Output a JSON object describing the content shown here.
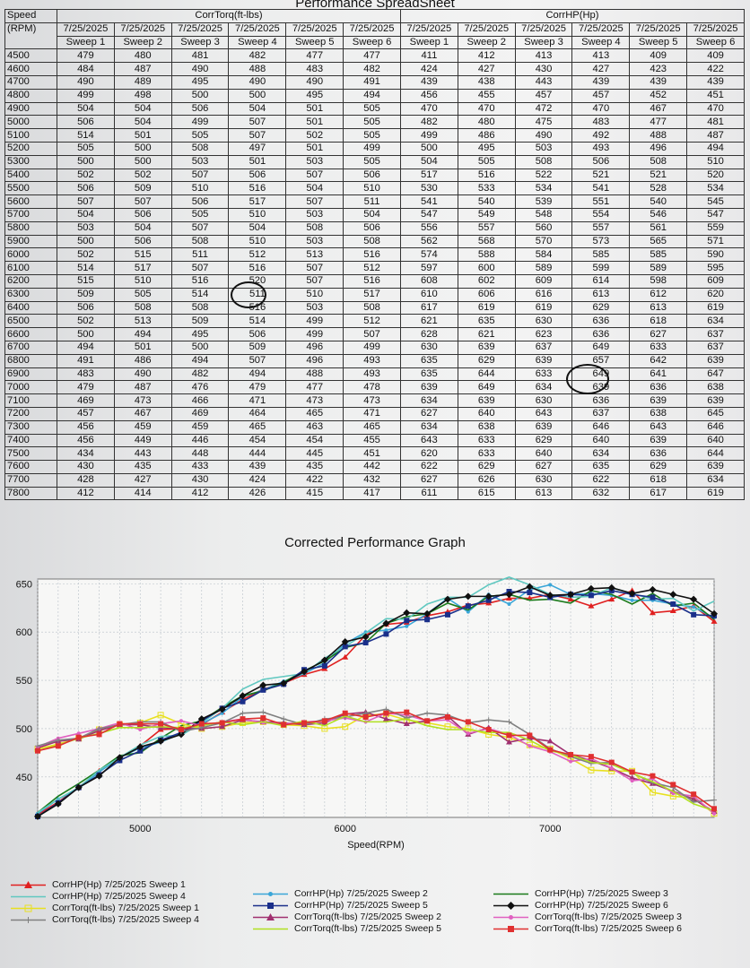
{
  "spreadsheet": {
    "title": "Performance SpreadSheet",
    "speed_header": "Speed",
    "rpm_header": "(RPM)",
    "torque_group": "CorrTorq(ft-lbs)",
    "hp_group": "CorrHP(Hp)",
    "date": "7/25/2025",
    "sweeps": [
      "Sweep 1",
      "Sweep 2",
      "Sweep 3",
      "Sweep 4",
      "Sweep 5",
      "Sweep 6"
    ],
    "rows": [
      [
        "4500",
        "479",
        "480",
        "481",
        "482",
        "477",
        "477",
        "411",
        "412",
        "413",
        "413",
        "409",
        "409"
      ],
      [
        "4600",
        "484",
        "487",
        "490",
        "488",
        "483",
        "482",
        "424",
        "427",
        "430",
        "427",
        "423",
        "422"
      ],
      [
        "4700",
        "490",
        "489",
        "495",
        "490",
        "490",
        "491",
        "439",
        "438",
        "443",
        "439",
        "439",
        "439"
      ],
      [
        "4800",
        "499",
        "498",
        "500",
        "500",
        "495",
        "494",
        "456",
        "455",
        "457",
        "457",
        "452",
        "451"
      ],
      [
        "4900",
        "504",
        "504",
        "506",
        "504",
        "501",
        "505",
        "470",
        "470",
        "472",
        "470",
        "467",
        "470"
      ],
      [
        "5000",
        "506",
        "504",
        "499",
        "507",
        "501",
        "505",
        "482",
        "480",
        "475",
        "483",
        "477",
        "481"
      ],
      [
        "5100",
        "514",
        "501",
        "505",
        "507",
        "502",
        "505",
        "499",
        "486",
        "490",
        "492",
        "488",
        "487"
      ],
      [
        "5200",
        "505",
        "500",
        "508",
        "497",
        "501",
        "499",
        "500",
        "495",
        "503",
        "493",
        "496",
        "494"
      ],
      [
        "5300",
        "500",
        "500",
        "503",
        "501",
        "503",
        "505",
        "504",
        "505",
        "508",
        "506",
        "508",
        "510"
      ],
      [
        "5400",
        "502",
        "502",
        "507",
        "506",
        "507",
        "506",
        "517",
        "516",
        "522",
        "521",
        "521",
        "520"
      ],
      [
        "5500",
        "506",
        "509",
        "510",
        "516",
        "504",
        "510",
        "530",
        "533",
        "534",
        "541",
        "528",
        "534"
      ],
      [
        "5600",
        "507",
        "507",
        "506",
        "517",
        "507",
        "511",
        "541",
        "540",
        "539",
        "551",
        "540",
        "545"
      ],
      [
        "5700",
        "504",
        "506",
        "505",
        "510",
        "503",
        "504",
        "547",
        "549",
        "548",
        "554",
        "546",
        "547"
      ],
      [
        "5800",
        "503",
        "504",
        "507",
        "504",
        "508",
        "506",
        "556",
        "557",
        "560",
        "557",
        "561",
        "559"
      ],
      [
        "5900",
        "500",
        "506",
        "508",
        "510",
        "503",
        "508",
        "562",
        "568",
        "570",
        "573",
        "565",
        "571"
      ],
      [
        "6000",
        "502",
        "515",
        "511",
        "512",
        "513",
        "516",
        "574",
        "588",
        "584",
        "585",
        "585",
        "590"
      ],
      [
        "6100",
        "514",
        "517",
        "507",
        "516",
        "507",
        "512",
        "597",
        "600",
        "589",
        "599",
        "589",
        "595"
      ],
      [
        "6200",
        "515",
        "510",
        "516",
        "520",
        "507",
        "516",
        "608",
        "602",
        "609",
        "614",
        "598",
        "609"
      ],
      [
        "6300",
        "509",
        "505",
        "514",
        "511",
        "510",
        "517",
        "610",
        "606",
        "616",
        "613",
        "612",
        "620"
      ],
      [
        "6400",
        "506",
        "508",
        "508",
        "516",
        "503",
        "508",
        "617",
        "619",
        "619",
        "629",
        "613",
        "619"
      ],
      [
        "6500",
        "502",
        "513",
        "509",
        "514",
        "499",
        "512",
        "621",
        "635",
        "630",
        "636",
        "618",
        "634"
      ],
      [
        "6600",
        "500",
        "494",
        "495",
        "506",
        "499",
        "507",
        "628",
        "621",
        "623",
        "636",
        "627",
        "637"
      ],
      [
        "6700",
        "494",
        "501",
        "500",
        "509",
        "496",
        "499",
        "630",
        "639",
        "637",
        "649",
        "633",
        "637"
      ],
      [
        "6800",
        "491",
        "486",
        "494",
        "507",
        "496",
        "493",
        "635",
        "629",
        "639",
        "657",
        "642",
        "639"
      ],
      [
        "6900",
        "483",
        "490",
        "482",
        "494",
        "488",
        "493",
        "635",
        "644",
        "633",
        "649",
        "641",
        "647"
      ],
      [
        "7000",
        "479",
        "487",
        "476",
        "479",
        "477",
        "478",
        "639",
        "649",
        "634",
        "639",
        "636",
        "638"
      ],
      [
        "7100",
        "469",
        "473",
        "466",
        "471",
        "473",
        "473",
        "634",
        "639",
        "630",
        "636",
        "639",
        "639"
      ],
      [
        "7200",
        "457",
        "467",
        "469",
        "464",
        "465",
        "471",
        "627",
        "640",
        "643",
        "637",
        "638",
        "645"
      ],
      [
        "7300",
        "456",
        "459",
        "459",
        "465",
        "463",
        "465",
        "634",
        "638",
        "639",
        "646",
        "643",
        "646"
      ],
      [
        "7400",
        "456",
        "449",
        "446",
        "454",
        "454",
        "455",
        "643",
        "633",
        "629",
        "640",
        "639",
        "640"
      ],
      [
        "7500",
        "434",
        "443",
        "448",
        "444",
        "445",
        "451",
        "620",
        "633",
        "640",
        "634",
        "636",
        "644"
      ],
      [
        "7600",
        "430",
        "435",
        "433",
        "439",
        "435",
        "442",
        "622",
        "629",
        "627",
        "635",
        "629",
        "639"
      ],
      [
        "7700",
        "428",
        "427",
        "430",
        "424",
        "422",
        "432",
        "627",
        "626",
        "630",
        "622",
        "618",
        "634"
      ],
      [
        "7800",
        "412",
        "414",
        "412",
        "426",
        "415",
        "417",
        "611",
        "615",
        "613",
        "632",
        "617",
        "619"
      ]
    ]
  },
  "graph": {
    "title": "Corrected Performance Graph",
    "xlabel": "Speed(RPM)",
    "colors": {
      "hp_s1": "#e02020",
      "hp_s2": "#3aa6d8",
      "hp_s3": "#1a7a1a",
      "hp_s4": "#60c8c0",
      "hp_s5": "#1a2f8a",
      "hp_s6": "#101010",
      "tq_s1": "#e8e020",
      "tq_s2": "#a03070",
      "tq_s3": "#e060c0",
      "tq_s4": "#808080",
      "tq_s5": "#b0e020",
      "tq_s6": "#e03030"
    },
    "legend": [
      {
        "label": "CorrHP(Hp) 7/25/2025 Sweep 1",
        "color": "#e02020",
        "marker": "triangle"
      },
      {
        "label": "CorrHP(Hp) 7/25/2025 Sweep 2",
        "color": "#3aa6d8",
        "marker": "star"
      },
      {
        "label": "CorrHP(Hp) 7/25/2025 Sweep 3",
        "color": "#1a7a1a",
        "marker": "dash"
      },
      {
        "label": "CorrHP(Hp) 7/25/2025 Sweep 4",
        "color": "#60c8c0",
        "marker": "none"
      },
      {
        "label": "CorrHP(Hp) 7/25/2025 Sweep 5",
        "color": "#1a2f8a",
        "marker": "square"
      },
      {
        "label": "CorrHP(Hp) 7/25/2025 Sweep 6",
        "color": "#101010",
        "marker": "diamond"
      },
      {
        "label": "CorrTorq(ft-lbs) 7/25/2025 Sweep 1",
        "color": "#e8e020",
        "marker": "hollow-square"
      },
      {
        "label": "CorrTorq(ft-lbs) 7/25/2025 Sweep 2",
        "color": "#a03070",
        "marker": "triangle"
      },
      {
        "label": "CorrTorq(ft-lbs) 7/25/2025 Sweep 3",
        "color": "#e060c0",
        "marker": "star"
      },
      {
        "label": "CorrTorq(ft-lbs) 7/25/2025 Sweep 4",
        "color": "#808080",
        "marker": "plus"
      },
      {
        "label": "CorrTorq(ft-lbs) 7/25/2025 Sweep 5",
        "color": "#b0e020",
        "marker": "none"
      },
      {
        "label": "CorrTorq(ft-lbs) 7/25/2025 Sweep 6",
        "color": "#e03030",
        "marker": "square"
      }
    ]
  },
  "chart_data": {
    "type": "line",
    "title": "Corrected Performance Graph",
    "xlabel": "Speed(RPM)",
    "ylabel": "",
    "xlim": [
      4500,
      7800
    ],
    "ylim": [
      408,
      655
    ],
    "xticks": [
      5000,
      6000,
      7000
    ],
    "yticks": [
      450,
      500,
      550,
      600,
      650
    ],
    "grid": true,
    "legend_position": "bottom",
    "x": [
      4500,
      4600,
      4700,
      4800,
      4900,
      5000,
      5100,
      5200,
      5300,
      5400,
      5500,
      5600,
      5700,
      5800,
      5900,
      6000,
      6100,
      6200,
      6300,
      6400,
      6500,
      6600,
      6700,
      6800,
      6900,
      7000,
      7100,
      7200,
      7300,
      7400,
      7500,
      7600,
      7700,
      7800
    ]
  }
}
